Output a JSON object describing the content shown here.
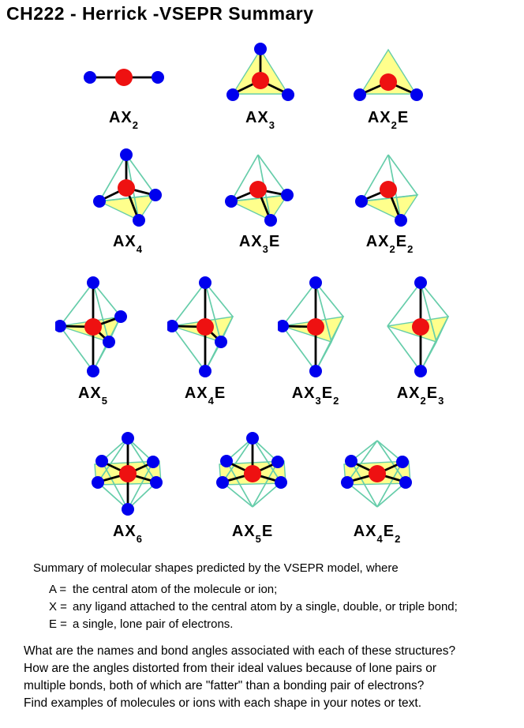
{
  "title": "CH222 - Herrick -VSEPR Summary",
  "colors": {
    "ligand_blue": "#0000ee",
    "center_red": "#ee1111",
    "face_yellow": "#ffff8c",
    "wireframe_teal": "#66cdaa",
    "bond_black": "#000000",
    "background": "#ffffff",
    "text": "#000000"
  },
  "molecules": [
    {
      "label": "AX2",
      "geometry": "linear",
      "formula": [
        {
          "t": "AX"
        },
        {
          "t": "2",
          "sub": true
        }
      ]
    },
    {
      "label": "AX3",
      "geometry": "trigonal-planar",
      "formula": [
        {
          "t": "AX"
        },
        {
          "t": "3",
          "sub": true
        }
      ]
    },
    {
      "label": "AX2E",
      "geometry": "bent",
      "formula": [
        {
          "t": "AX"
        },
        {
          "t": "2",
          "sub": true
        },
        {
          "t": "E"
        }
      ]
    },
    {
      "label": "AX4",
      "geometry": "tetrahedral",
      "formula": [
        {
          "t": "AX"
        },
        {
          "t": "4",
          "sub": true
        }
      ]
    },
    {
      "label": "AX3E",
      "geometry": "trigonal-pyramidal",
      "formula": [
        {
          "t": "AX"
        },
        {
          "t": "3",
          "sub": true
        },
        {
          "t": "E"
        }
      ]
    },
    {
      "label": "AX2E2",
      "geometry": "bent",
      "formula": [
        {
          "t": "AX"
        },
        {
          "t": "2",
          "sub": true
        },
        {
          "t": "E"
        },
        {
          "t": "2",
          "sub": true
        }
      ]
    },
    {
      "label": "AX5",
      "geometry": "trigonal-bipyramidal",
      "formula": [
        {
          "t": "AX"
        },
        {
          "t": "5",
          "sub": true
        }
      ]
    },
    {
      "label": "AX4E",
      "geometry": "seesaw",
      "formula": [
        {
          "t": "AX"
        },
        {
          "t": "4",
          "sub": true
        },
        {
          "t": "E"
        }
      ]
    },
    {
      "label": "AX3E2",
      "geometry": "t-shaped",
      "formula": [
        {
          "t": "AX"
        },
        {
          "t": "3",
          "sub": true
        },
        {
          "t": "E"
        },
        {
          "t": "2",
          "sub": true
        }
      ]
    },
    {
      "label": "AX2E3",
      "geometry": "linear",
      "formula": [
        {
          "t": "AX"
        },
        {
          "t": "2",
          "sub": true
        },
        {
          "t": "E"
        },
        {
          "t": "3",
          "sub": true
        }
      ]
    },
    {
      "label": "AX6",
      "geometry": "octahedral",
      "formula": [
        {
          "t": "AX"
        },
        {
          "t": "6",
          "sub": true
        }
      ]
    },
    {
      "label": "AX5E",
      "geometry": "square-pyramidal",
      "formula": [
        {
          "t": "AX"
        },
        {
          "t": "5",
          "sub": true
        },
        {
          "t": "E"
        }
      ]
    },
    {
      "label": "AX4E2",
      "geometry": "square-planar",
      "formula": [
        {
          "t": "AX"
        },
        {
          "t": "4",
          "sub": true
        },
        {
          "t": "E"
        },
        {
          "t": "2",
          "sub": true
        }
      ]
    }
  ],
  "notes": {
    "summary_line": "Summary of molecular shapes predicted by the VSEPR model, where",
    "definitions": [
      {
        "symbol": "A =",
        "text": "the central atom of the molecule or ion;"
      },
      {
        "symbol": "X =",
        "text": "any ligand attached to the central atom by a single, double, or triple bond;"
      },
      {
        "symbol": "E =",
        "text": "a single, lone pair of electrons."
      }
    ],
    "questions": [
      "What are the names and bond angles associated with each of these structures?",
      "How are the angles distorted from their ideal values because of lone pairs or",
      "multiple bonds, both of which are \"fatter\" than a bonding pair of electrons?",
      "Find examples of molecules or ions with each shape in your notes or text."
    ]
  }
}
